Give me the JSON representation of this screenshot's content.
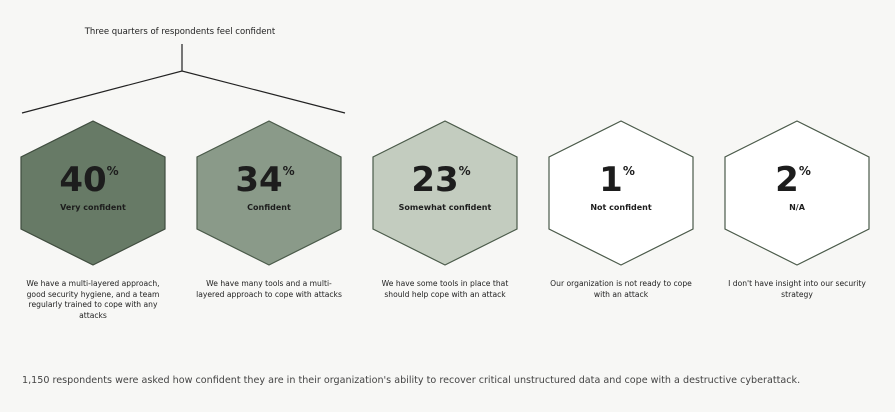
{
  "bracket_label": "Three quarters of respondents feel confident",
  "chart_data": {
    "type": "hexagon-infographic",
    "categories": [
      "Very confident",
      "Confident",
      "Somewhat confident",
      "Not confident",
      "N/A"
    ],
    "values": [
      40,
      34,
      23,
      1,
      2
    ],
    "unit": "%"
  },
  "items": [
    {
      "value": "40",
      "unit": "%",
      "label": "Very confident",
      "desc": "We have a multi-layered approach, good security hygiene, and a team regularly trained to cope with any attacks",
      "fill": "#677a66",
      "stroke": "#3f4c3e"
    },
    {
      "value": "34",
      "unit": "%",
      "label": "Confident",
      "desc": "We have many tools and a multi-layered approach to cope with attacks",
      "fill": "#8a9a89",
      "stroke": "#4a5a49"
    },
    {
      "value": "23",
      "unit": "%",
      "label": "Somewhat confident",
      "desc": "We have some tools in place that should help cope with an attack",
      "fill": "#c3ccbf",
      "stroke": "#4a5a49"
    },
    {
      "value": "1",
      "unit": "%",
      "label": "Not confident",
      "desc": "Our organization is not ready to cope with an attack",
      "fill": "#ffffff",
      "stroke": "#4a5a49"
    },
    {
      "value": "2",
      "unit": "%",
      "label": "N/A",
      "desc": "I don't have insight into our security strategy",
      "fill": "#ffffff",
      "stroke": "#4a5a49"
    }
  ],
  "footnote": "1,150 respondents were asked how confident they are in their organization's ability to recover critical unstructured data and cope with a destructive cyberattack."
}
